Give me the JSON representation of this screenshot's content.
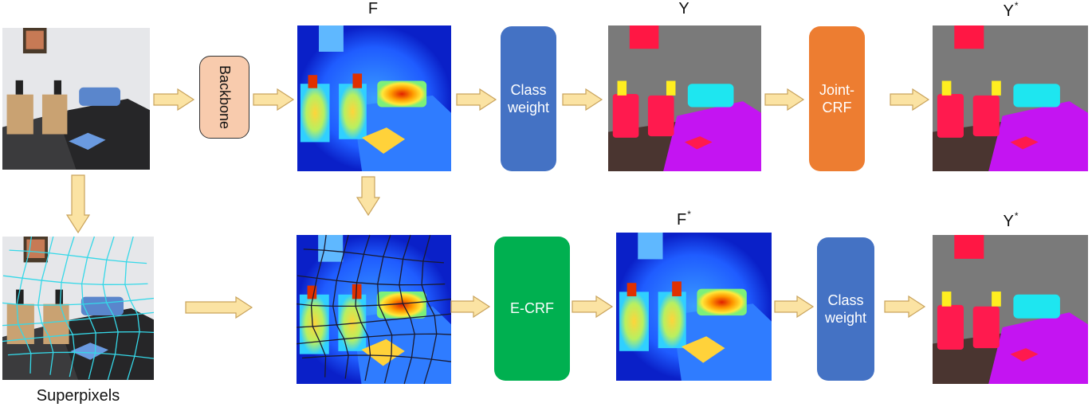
{
  "labels": {
    "f": "F",
    "y": "Y",
    "y_star_top": {
      "base": "Y",
      "sup": "*"
    },
    "f_star": {
      "base": "F",
      "sup": "*"
    },
    "y_star_bottom": {
      "base": "Y",
      "sup": "*"
    },
    "superpixels": "Superpixels"
  },
  "blocks": {
    "backbone": "Backbone",
    "class_weight_top": "Class weight",
    "joint_crf": "Joint-CRF",
    "e_crf": "E-CRF",
    "class_weight_bottom": "Class weight"
  }
}
